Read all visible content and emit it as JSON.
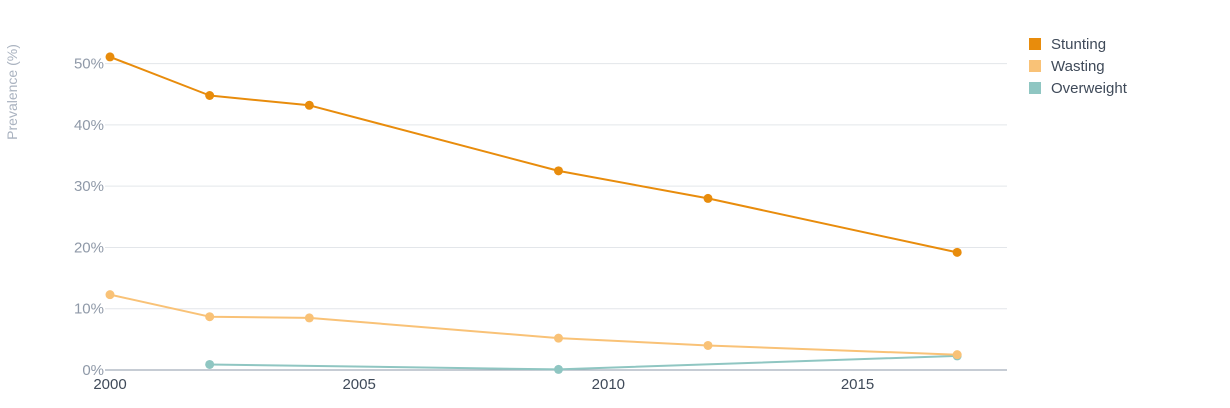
{
  "chart_data": {
    "type": "line",
    "title": "",
    "xlabel": "",
    "ylabel": "Prevalence (%)",
    "xlim": [
      2000,
      2018
    ],
    "ylim": [
      0,
      55
    ],
    "x_ticks": [
      "2000",
      "2005",
      "2010",
      "2015"
    ],
    "y_ticks": [
      "0%",
      "10%",
      "20%",
      "30%",
      "40%",
      "50%"
    ],
    "grid": true,
    "legend_position": "top-right",
    "series": [
      {
        "name": "Stunting",
        "color": "#e88c0c",
        "x": [
          2000,
          2002,
          2004,
          2009,
          2012,
          2017
        ],
        "values": [
          51.1,
          44.8,
          43.2,
          32.5,
          28.0,
          19.2
        ]
      },
      {
        "name": "Wasting",
        "color": "#f9c277",
        "x": [
          2000,
          2002,
          2004,
          2009,
          2012,
          2017
        ],
        "values": [
          12.3,
          8.7,
          8.5,
          5.2,
          4.0,
          2.5
        ]
      },
      {
        "name": "Overweight",
        "color": "#8fc6c2",
        "x": [
          2002,
          2009,
          2017
        ],
        "values": [
          0.9,
          0.1,
          2.3
        ]
      }
    ]
  }
}
